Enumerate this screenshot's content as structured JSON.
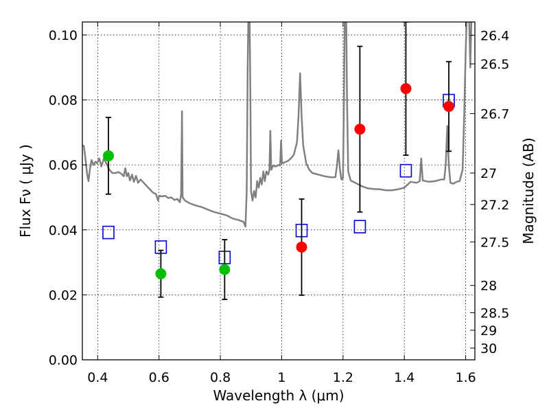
{
  "chart_data": {
    "type": "scatter",
    "xlabel": "Wavelength  λ (μm)",
    "ylabel": "Flux  Fν  ( μJy )",
    "y2label": "Magnitude (AB)",
    "xlim": [
      0.35,
      1.63
    ],
    "ylim": [
      0.0,
      0.104
    ],
    "grid": true,
    "x_ticks": [
      0.4,
      0.6,
      0.8,
      1.0,
      1.2,
      1.4,
      1.6
    ],
    "x_tick_labels": [
      "0.4",
      "0.6",
      "0.8",
      "1",
      "1.2",
      "1.4",
      "1.6"
    ],
    "y_ticks": [
      0.0,
      0.02,
      0.04,
      0.06,
      0.08,
      0.1
    ],
    "y_tick_labels": [
      "0.00",
      "0.02",
      "0.04",
      "0.06",
      "0.08",
      "0.10"
    ],
    "mag_ticks": [
      {
        "label": "26.4",
        "flux": 0.0999
      },
      {
        "label": "26.5",
        "flux": 0.0911
      },
      {
        "label": "26.7",
        "flux": 0.0758
      },
      {
        "label": "27",
        "flux": 0.0575
      },
      {
        "label": "27.2",
        "flux": 0.0478
      },
      {
        "label": "27.5",
        "flux": 0.0363
      },
      {
        "label": "28",
        "flux": 0.0229
      },
      {
        "label": "28.5",
        "flux": 0.0145
      },
      {
        "label": "29",
        "flux": 0.0091
      },
      {
        "label": "30",
        "flux": 0.0036
      }
    ],
    "colors": {
      "spectrum": "#808080",
      "green": "#00c000",
      "red": "#ff0000",
      "model": "#0000cc",
      "errorbar": "#000000"
    },
    "green_points": [
      {
        "x": 0.435,
        "y": 0.0628,
        "err": 0.0118
      },
      {
        "x": 0.606,
        "y": 0.0265,
        "err": 0.0072
      },
      {
        "x": 0.814,
        "y": 0.0278,
        "err": 0.0092
      }
    ],
    "red_points": [
      {
        "x": 1.065,
        "y": 0.0347,
        "err": 0.0148
      },
      {
        "x": 1.255,
        "y": 0.071,
        "err": 0.0255
      },
      {
        "x": 1.405,
        "y": 0.0835,
        "err": 0.0205
      },
      {
        "x": 1.545,
        "y": 0.078,
        "err": 0.0138
      }
    ],
    "model_points": [
      {
        "x": 0.435,
        "y": 0.0392
      },
      {
        "x": 0.606,
        "y": 0.0347
      },
      {
        "x": 0.814,
        "y": 0.0315
      },
      {
        "x": 1.065,
        "y": 0.0398
      },
      {
        "x": 1.255,
        "y": 0.041
      },
      {
        "x": 1.405,
        "y": 0.0582
      },
      {
        "x": 1.545,
        "y": 0.0798
      }
    ],
    "spectrum": [
      [
        0.35,
        0.066
      ],
      [
        0.355,
        0.0658
      ],
      [
        0.36,
        0.062
      ],
      [
        0.365,
        0.0575
      ],
      [
        0.37,
        0.055
      ],
      [
        0.375,
        0.059
      ],
      [
        0.38,
        0.0615
      ],
      [
        0.387,
        0.06
      ],
      [
        0.393,
        0.061
      ],
      [
        0.398,
        0.0605
      ],
      [
        0.405,
        0.062
      ],
      [
        0.412,
        0.0595
      ],
      [
        0.42,
        0.062
      ],
      [
        0.428,
        0.0605
      ],
      [
        0.438,
        0.0585
      ],
      [
        0.448,
        0.0575
      ],
      [
        0.458,
        0.0575
      ],
      [
        0.468,
        0.0578
      ],
      [
        0.478,
        0.0572
      ],
      [
        0.485,
        0.0565
      ],
      [
        0.49,
        0.059
      ],
      [
        0.495,
        0.0565
      ],
      [
        0.5,
        0.0575
      ],
      [
        0.505,
        0.0552
      ],
      [
        0.512,
        0.057
      ],
      [
        0.518,
        0.0548
      ],
      [
        0.525,
        0.0566
      ],
      [
        0.532,
        0.0545
      ],
      [
        0.54,
        0.0555
      ],
      [
        0.55,
        0.0545
      ],
      [
        0.56,
        0.0535
      ],
      [
        0.57,
        0.0525
      ],
      [
        0.58,
        0.0515
      ],
      [
        0.59,
        0.051
      ],
      [
        0.597,
        0.049
      ],
      [
        0.6,
        0.0505
      ],
      [
        0.61,
        0.0503
      ],
      [
        0.62,
        0.0505
      ],
      [
        0.63,
        0.0498
      ],
      [
        0.64,
        0.05
      ],
      [
        0.65,
        0.0492
      ],
      [
        0.66,
        0.0495
      ],
      [
        0.668,
        0.0485
      ],
      [
        0.672,
        0.051
      ],
      [
        0.675,
        0.0765
      ],
      [
        0.677,
        0.05
      ],
      [
        0.685,
        0.049
      ],
      [
        0.7,
        0.0482
      ],
      [
        0.72,
        0.0475
      ],
      [
        0.74,
        0.047
      ],
      [
        0.76,
        0.0462
      ],
      [
        0.78,
        0.0455
      ],
      [
        0.8,
        0.045
      ],
      [
        0.82,
        0.0445
      ],
      [
        0.84,
        0.0435
      ],
      [
        0.86,
        0.043
      ],
      [
        0.875,
        0.0425
      ],
      [
        0.882,
        0.041
      ],
      [
        0.886,
        0.052
      ],
      [
        0.889,
        0.09
      ],
      [
        0.892,
        0.11
      ],
      [
        0.895,
        0.11
      ],
      [
        0.898,
        0.08
      ],
      [
        0.9,
        0.052
      ],
      [
        0.905,
        0.049
      ],
      [
        0.91,
        0.052
      ],
      [
        0.915,
        0.05
      ],
      [
        0.92,
        0.055
      ],
      [
        0.925,
        0.053
      ],
      [
        0.93,
        0.056
      ],
      [
        0.935,
        0.054
      ],
      [
        0.94,
        0.058
      ],
      [
        0.945,
        0.055
      ],
      [
        0.95,
        0.058
      ],
      [
        0.956,
        0.057
      ],
      [
        0.96,
        0.0585
      ],
      [
        0.963,
        0.0705
      ],
      [
        0.966,
        0.0585
      ],
      [
        0.972,
        0.0598
      ],
      [
        0.98,
        0.0595
      ],
      [
        0.99,
        0.06
      ],
      [
        0.995,
        0.0598
      ],
      [
        0.998,
        0.0675
      ],
      [
        1.001,
        0.0605
      ],
      [
        1.01,
        0.0608
      ],
      [
        1.02,
        0.0612
      ],
      [
        1.03,
        0.062
      ],
      [
        1.04,
        0.0632
      ],
      [
        1.05,
        0.067
      ],
      [
        1.055,
        0.075
      ],
      [
        1.06,
        0.0882
      ],
      [
        1.065,
        0.075
      ],
      [
        1.07,
        0.066
      ],
      [
        1.08,
        0.0605
      ],
      [
        1.09,
        0.0585
      ],
      [
        1.1,
        0.0575
      ],
      [
        1.12,
        0.057
      ],
      [
        1.14,
        0.0565
      ],
      [
        1.16,
        0.0562
      ],
      [
        1.175,
        0.0562
      ],
      [
        1.18,
        0.0595
      ],
      [
        1.185,
        0.0645
      ],
      [
        1.19,
        0.0585
      ],
      [
        1.195,
        0.0555
      ],
      [
        1.2,
        0.056
      ],
      [
        1.203,
        0.08
      ],
      [
        1.206,
        0.11
      ],
      [
        1.21,
        0.11
      ],
      [
        1.213,
        0.08
      ],
      [
        1.217,
        0.058
      ],
      [
        1.225,
        0.0552
      ],
      [
        1.24,
        0.0545
      ],
      [
        1.26,
        0.0535
      ],
      [
        1.28,
        0.0528
      ],
      [
        1.3,
        0.0526
      ],
      [
        1.32,
        0.0525
      ],
      [
        1.34,
        0.0522
      ],
      [
        1.36,
        0.0522
      ],
      [
        1.38,
        0.0525
      ],
      [
        1.4,
        0.053
      ],
      [
        1.42,
        0.0548
      ],
      [
        1.44,
        0.0545
      ],
      [
        1.45,
        0.055
      ],
      [
        1.455,
        0.062
      ],
      [
        1.46,
        0.0552
      ],
      [
        1.47,
        0.055
      ],
      [
        1.48,
        0.0548
      ],
      [
        1.5,
        0.055
      ],
      [
        1.52,
        0.0555
      ],
      [
        1.53,
        0.0555
      ],
      [
        1.535,
        0.06
      ],
      [
        1.54,
        0.072
      ],
      [
        1.545,
        0.06
      ],
      [
        1.55,
        0.0545
      ],
      [
        1.56,
        0.0542
      ],
      [
        1.57,
        0.0548
      ],
      [
        1.58,
        0.055
      ],
      [
        1.59,
        0.0585
      ],
      [
        1.595,
        0.075
      ],
      [
        1.6,
        0.095
      ],
      [
        1.605,
        0.11
      ],
      [
        1.61,
        0.11
      ],
      [
        1.615,
        0.09
      ],
      [
        1.62,
        0.11
      ],
      [
        1.63,
        0.11
      ]
    ]
  }
}
